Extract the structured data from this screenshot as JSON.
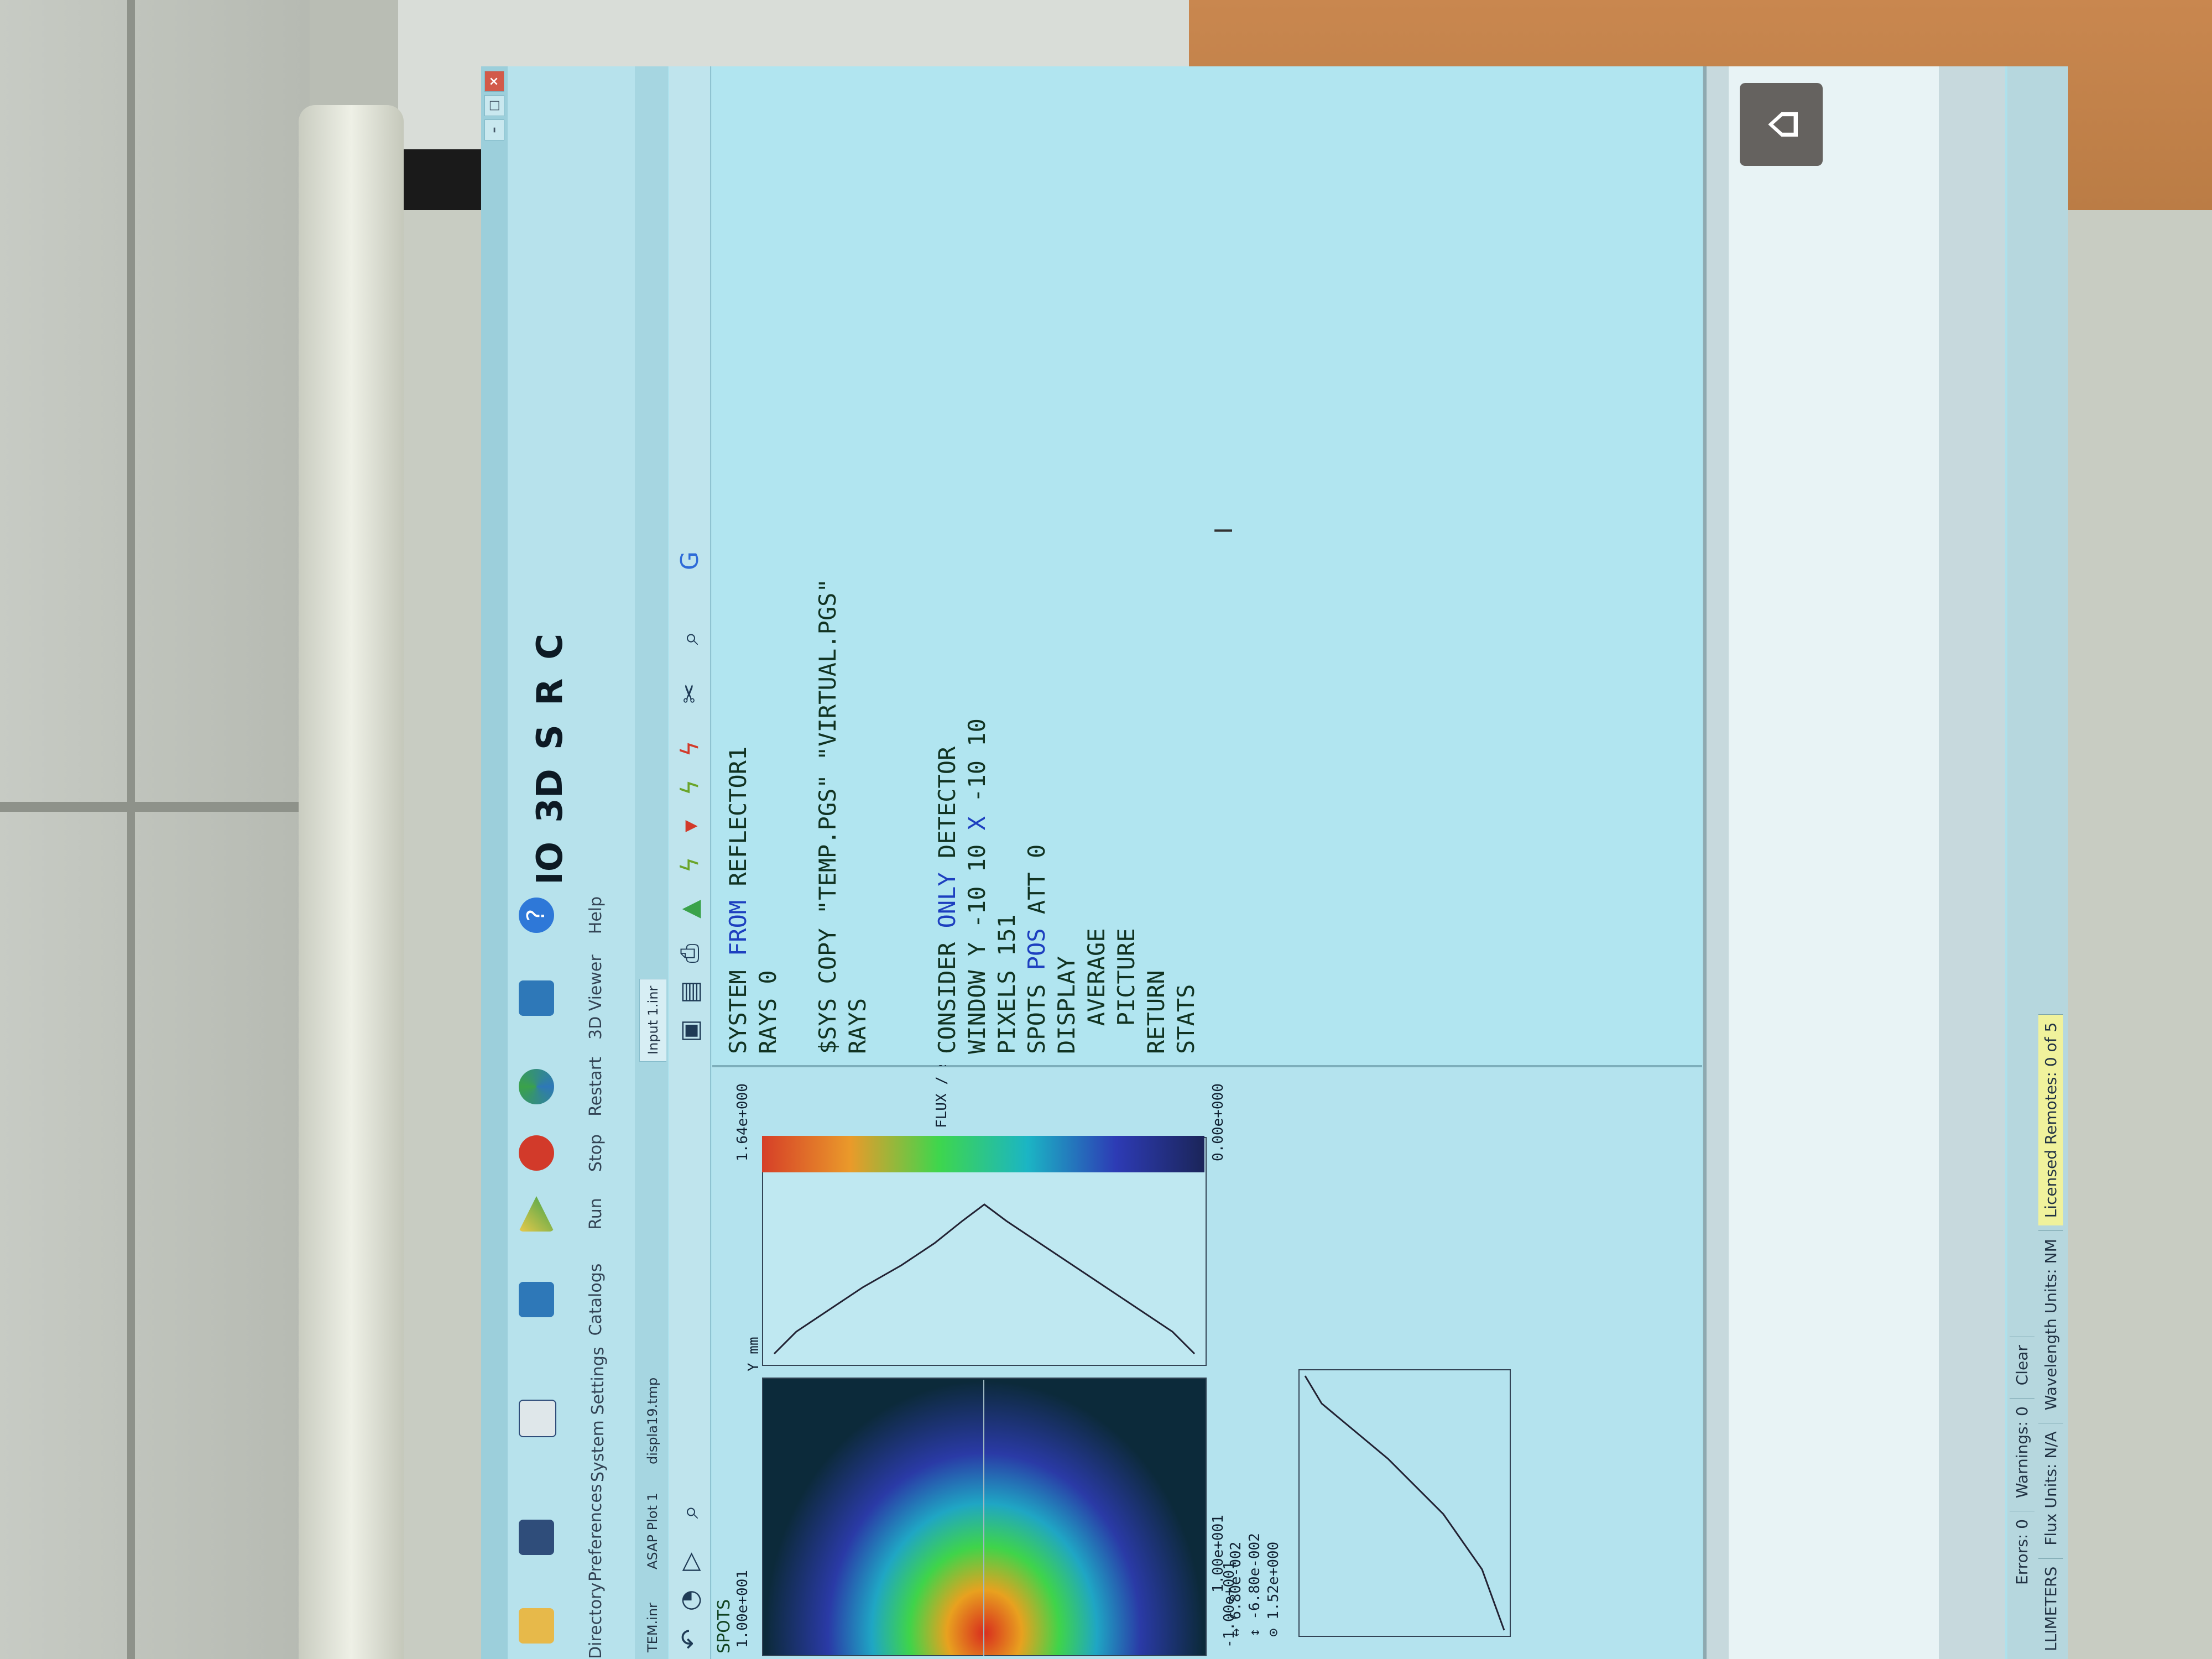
{
  "ribbon": {
    "items": [
      {
        "label": "Directory",
        "icon": "folder-icon"
      },
      {
        "label": "Preferences",
        "icon": "sliders-icon"
      },
      {
        "label": "System Settings",
        "icon": "settings-list-icon"
      },
      {
        "label": "Catalogs",
        "icon": "catalogs-icon"
      },
      {
        "label": "Run",
        "icon": "run-icon"
      },
      {
        "label": "Stop",
        "icon": "stop-icon"
      },
      {
        "label": "Restart",
        "icon": "restart-icon"
      },
      {
        "label": "3D Viewer",
        "icon": "cube-icon"
      },
      {
        "label": "Help",
        "icon": "help-icon"
      }
    ],
    "big_letters": [
      "IO",
      "3D",
      "S",
      "R",
      "C"
    ]
  },
  "tabs": [
    {
      "label": "TEM.inr"
    },
    {
      "label": "ASAP Plot 1"
    },
    {
      "label": "displa19.tmp"
    },
    {
      "label": "Input 1.inr"
    }
  ],
  "left_pane": {
    "title": "SPOTS",
    "heat_axis_label": "Y mm",
    "heat_ticks": [
      "1.00e+001",
      "-1.00e+001",
      "1.00e+001"
    ],
    "colorbar_min": "0.00e+000",
    "colorbar_max": "1.64e+000",
    "colorbar_label": "FLUX / sq-mm",
    "readout_lines": [
      "↔ 6.80e-002",
      "↕ -6.80e-002",
      "⊙ 1.52e+000"
    ]
  },
  "editor": {
    "lines": [
      {
        "text": "SYSTEM FROM REFLECTOR1",
        "kw": "FROM"
      },
      {
        "text": "RAYS 0",
        "kw": ""
      },
      {
        "text": "",
        "kw": ""
      },
      {
        "text": "$SYS COPY \"TEMP.PGS\" \"VIRTUAL.PGS\"",
        "kw": ""
      },
      {
        "text": "RAYS",
        "kw": ""
      },
      {
        "text": "",
        "kw": ""
      },
      {
        "text": "",
        "kw": ""
      },
      {
        "text": "CONSIDER ONLY DETECTOR",
        "kw": "ONLY"
      },
      {
        "text": "WINDOW Y -10 10 X -10 10",
        "kw": "X"
      },
      {
        "text": "PIXELS 151",
        "kw": ""
      },
      {
        "text": "SPOTS POS ATT 0",
        "kw": "POS"
      },
      {
        "text": "DISPLAY",
        "kw": ""
      },
      {
        "text": "  AVERAGE",
        "kw": ""
      },
      {
        "text": "  PICTURE",
        "kw": ""
      },
      {
        "text": "RETURN",
        "kw": ""
      },
      {
        "text": "STATS",
        "kw": ""
      }
    ]
  },
  "status": {
    "errors": "Errors: 0",
    "warnings": "Warnings: 0",
    "clear": "Clear",
    "units_cell": "LLIMETERS",
    "flux_units": "Flux Units: N/A",
    "wavelength_units": "Wavelength Units: NM",
    "licensed": "Licensed Remotes: 0 of 5"
  },
  "colors": {
    "screen_bg": "#aee1ec",
    "keyword_blue": "#1d3fbf",
    "status_highlight": "#f0f29c"
  }
}
